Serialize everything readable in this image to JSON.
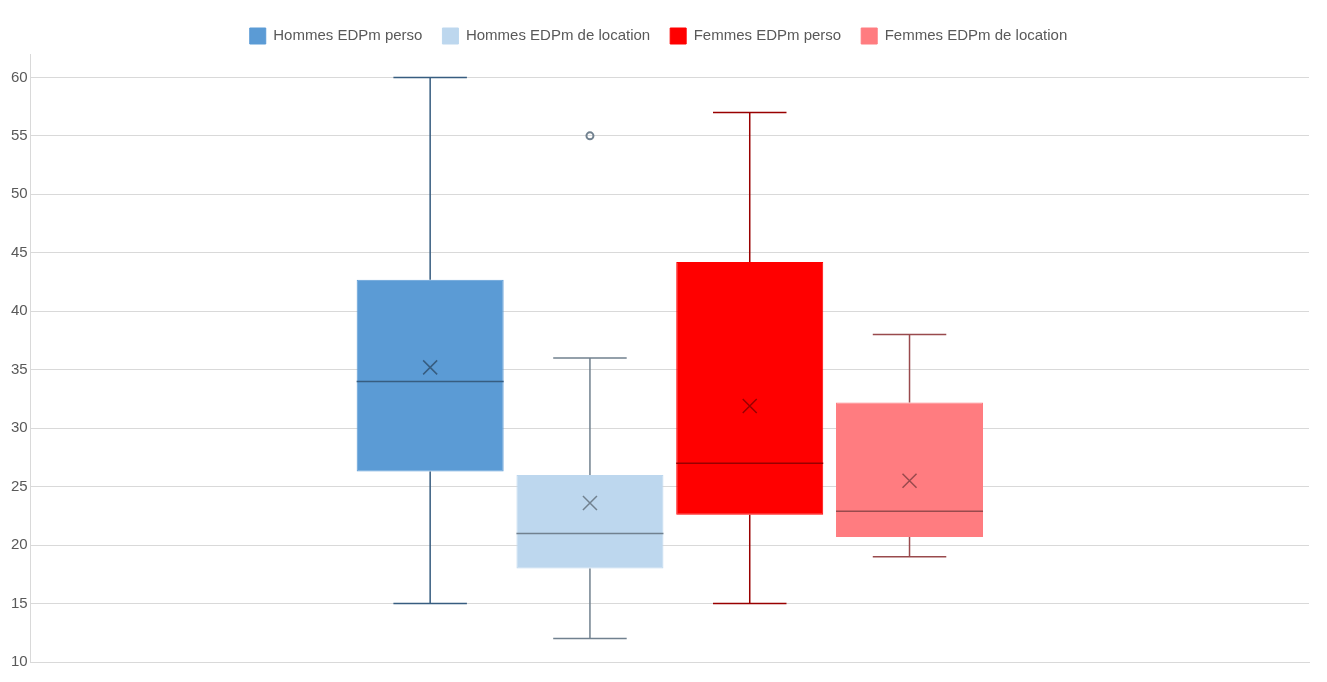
{
  "chart_data": {
    "type": "box",
    "categories": [
      null
    ],
    "ylim": [
      10,
      62
    ],
    "yticks": [
      10,
      15,
      20,
      25,
      30,
      35,
      40,
      45,
      50,
      55,
      60
    ],
    "grid": "y",
    "legend": "top",
    "series": [
      {
        "name": "Hommes EDPm perso",
        "color": "#5b9bd5",
        "boxes": [
          {
            "low": 15,
            "q1": 26.3,
            "median": 34,
            "q3": 42.7,
            "high": 60,
            "mean": 35.2
          }
        ]
      },
      {
        "name": "Hommes EDPm de location",
        "color": "#bdd7ee",
        "boxes": [
          {
            "low": 12,
            "q1": 18,
            "median": 21,
            "q3": 26,
            "high": 36,
            "mean": 23.6,
            "outliers": [
              55
            ]
          }
        ]
      },
      {
        "name": "Femmes EDPm perso",
        "color": "#ff0000",
        "boxes": [
          {
            "low": 15,
            "q1": 22.6,
            "median": 27,
            "q3": 44.2,
            "high": 57,
            "mean": 31.9
          }
        ]
      },
      {
        "name": "Femmes EDPm de location",
        "color": "#ff7c80",
        "boxes": [
          {
            "low": 19,
            "q1": 20.7,
            "median": 22.9,
            "q3": 32.2,
            "high": 38,
            "mean": 25.5
          }
        ]
      }
    ]
  }
}
